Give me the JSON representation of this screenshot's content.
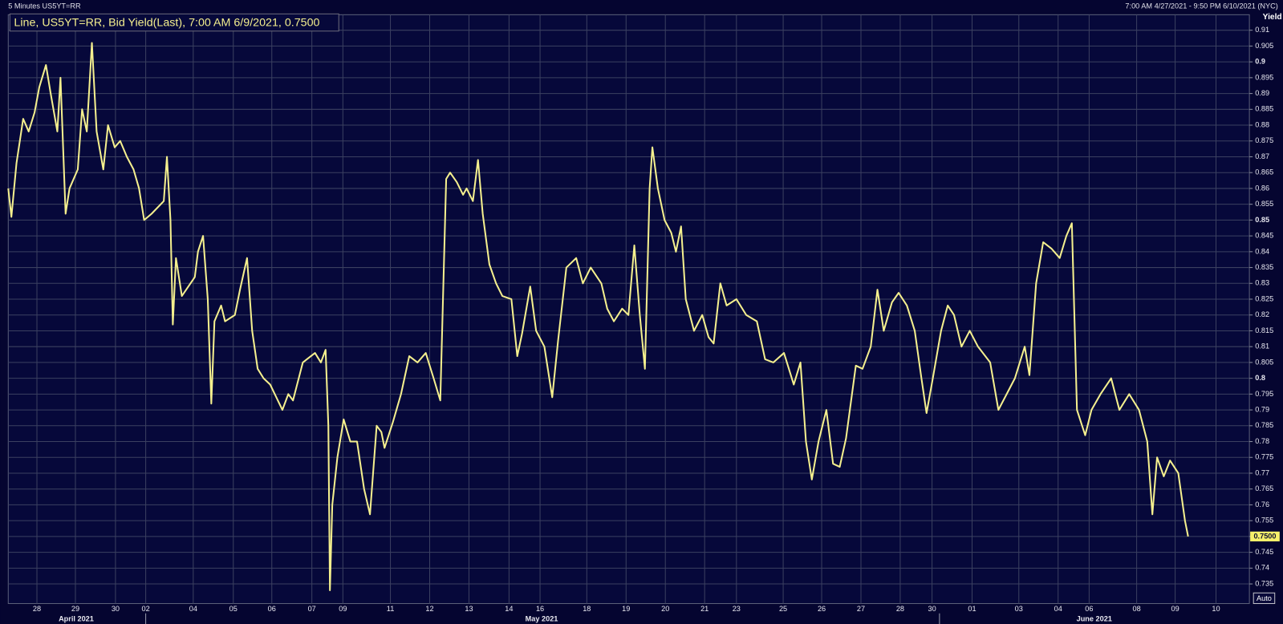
{
  "chart_data": {
    "type": "line",
    "header_left": "5 Minutes US5YT=RR",
    "header_right": "7:00 AM 4/27/2021 - 9:50 PM 6/10/2021 (NYC)",
    "legend": "Line, US5YT=RR, Bid Yield(Last), 7:00 AM 6/9/2021, 0.7500",
    "y_label": "Yield",
    "button": "Auto",
    "last_value_label": {
      "value": 0.75,
      "label": "0.7500"
    },
    "grid": true,
    "x": [
      0,
      0.08,
      0.21,
      0.38,
      0.52,
      0.67,
      0.79,
      0.96,
      1.08,
      1.25,
      1.33,
      1.46,
      1.56,
      1.77,
      1.88,
      2.0,
      2.13,
      2.25,
      2.42,
      2.54,
      2.71,
      2.85,
      3.02,
      3.19,
      3.33,
      3.46,
      3.65,
      3.96,
      4.04,
      4.13,
      4.19,
      4.27,
      4.42,
      4.75,
      4.83,
      4.96,
      5.08,
      5.17,
      5.25,
      5.42,
      5.52,
      5.77,
      5.9,
      6.08,
      6.21,
      6.35,
      6.5,
      6.67,
      6.98,
      7.13,
      7.25,
      7.5,
      7.81,
      7.96,
      8.08,
      8.15,
      8.19,
      8.25,
      8.38,
      8.54,
      8.71,
      8.88,
      9.06,
      9.21,
      9.38,
      9.5,
      9.58,
      9.79,
      10.0,
      10.21,
      10.42,
      10.63,
      10.83,
      11.0,
      11.15,
      11.25,
      11.42,
      11.58,
      11.67,
      11.83,
      11.96,
      12.08,
      12.25,
      12.42,
      12.58,
      12.81,
      12.96,
      13.08,
      13.29,
      13.44,
      13.65,
      13.85,
      14.0,
      14.21,
      14.46,
      14.63,
      14.83,
      15.1,
      15.25,
      15.42,
      15.63,
      15.79,
      15.94,
      16.08,
      16.21,
      16.33,
      16.4,
      16.54,
      16.71,
      16.88,
      17.0,
      17.13,
      17.25,
      17.46,
      17.67,
      17.83,
      17.96,
      18.13,
      18.29,
      18.54,
      18.79,
      19.06,
      19.27,
      19.48,
      19.75,
      20.0,
      20.17,
      20.31,
      20.46,
      20.63,
      20.83,
      21.0,
      21.17,
      21.33,
      21.58,
      21.75,
      21.96,
      22.13,
      22.29,
      22.5,
      22.67,
      22.88,
      23.08,
      23.25,
      23.38,
      23.54,
      23.75,
      23.92,
      24.08,
      24.27,
      24.48,
      24.69,
      25.0,
      25.21,
      25.42,
      25.63,
      25.88,
      26.0,
      26.17,
      26.35,
      26.56,
      26.77,
      26.94,
      27.08,
      27.21,
      27.42,
      27.58,
      27.81,
      28.08,
      28.29,
      28.54,
      28.79,
      29.0,
      29.13,
      29.25,
      29.42,
      29.58,
      29.79,
      29.96,
      30.04
    ],
    "series": [
      {
        "color": "#f4ef8e",
        "values": [
          0.86,
          0.851,
          0.868,
          0.882,
          0.878,
          0.884,
          0.892,
          0.899,
          0.89,
          0.878,
          0.895,
          0.852,
          0.86,
          0.866,
          0.885,
          0.878,
          0.906,
          0.878,
          0.866,
          0.88,
          0.873,
          0.875,
          0.87,
          0.866,
          0.86,
          0.85,
          0.852,
          0.856,
          0.87,
          0.85,
          0.817,
          0.838,
          0.826,
          0.832,
          0.84,
          0.845,
          0.825,
          0.792,
          0.818,
          0.823,
          0.818,
          0.82,
          0.828,
          0.838,
          0.815,
          0.803,
          0.8,
          0.798,
          0.79,
          0.795,
          0.793,
          0.805,
          0.808,
          0.805,
          0.809,
          0.785,
          0.733,
          0.76,
          0.775,
          0.787,
          0.78,
          0.78,
          0.765,
          0.757,
          0.785,
          0.783,
          0.778,
          0.786,
          0.795,
          0.807,
          0.805,
          0.808,
          0.8,
          0.793,
          0.863,
          0.865,
          0.862,
          0.858,
          0.86,
          0.856,
          0.869,
          0.852,
          0.836,
          0.83,
          0.826,
          0.825,
          0.807,
          0.814,
          0.829,
          0.815,
          0.81,
          0.794,
          0.812,
          0.835,
          0.838,
          0.83,
          0.835,
          0.83,
          0.822,
          0.818,
          0.822,
          0.82,
          0.842,
          0.82,
          0.803,
          0.86,
          0.873,
          0.86,
          0.85,
          0.846,
          0.84,
          0.848,
          0.825,
          0.815,
          0.82,
          0.813,
          0.811,
          0.83,
          0.823,
          0.825,
          0.82,
          0.818,
          0.806,
          0.805,
          0.808,
          0.798,
          0.805,
          0.78,
          0.768,
          0.78,
          0.79,
          0.773,
          0.772,
          0.781,
          0.804,
          0.803,
          0.81,
          0.828,
          0.815,
          0.824,
          0.827,
          0.823,
          0.815,
          0.8,
          0.789,
          0.8,
          0.815,
          0.823,
          0.82,
          0.81,
          0.815,
          0.81,
          0.805,
          0.79,
          0.795,
          0.8,
          0.81,
          0.801,
          0.83,
          0.843,
          0.841,
          0.838,
          0.845,
          0.849,
          0.79,
          0.782,
          0.79,
          0.795,
          0.8,
          0.79,
          0.795,
          0.79,
          0.78,
          0.757,
          0.775,
          0.769,
          0.774,
          0.77,
          0.755,
          0.75
        ]
      }
    ],
    "xlim": [
      0,
      31.6
    ],
    "xticks": [
      {
        "value": 0.73,
        "label": "28"
      },
      {
        "value": 1.71,
        "label": "29"
      },
      {
        "value": 2.73,
        "label": "30"
      },
      {
        "value": 3.5,
        "label": "02"
      },
      {
        "value": 4.71,
        "label": "04"
      },
      {
        "value": 5.73,
        "label": "05"
      },
      {
        "value": 6.71,
        "label": "06"
      },
      {
        "value": 7.73,
        "label": "07"
      },
      {
        "value": 8.52,
        "label": "09"
      },
      {
        "value": 9.73,
        "label": "11"
      },
      {
        "value": 10.73,
        "label": "12"
      },
      {
        "value": 11.73,
        "label": "13"
      },
      {
        "value": 12.75,
        "label": "14"
      },
      {
        "value": 13.54,
        "label": "16"
      },
      {
        "value": 14.73,
        "label": "18"
      },
      {
        "value": 15.73,
        "label": "19"
      },
      {
        "value": 16.73,
        "label": "20"
      },
      {
        "value": 17.73,
        "label": "21"
      },
      {
        "value": 18.54,
        "label": "23"
      },
      {
        "value": 19.73,
        "label": "25"
      },
      {
        "value": 20.71,
        "label": "26"
      },
      {
        "value": 21.71,
        "label": "27"
      },
      {
        "value": 22.71,
        "label": "28"
      },
      {
        "value": 23.52,
        "label": "30"
      },
      {
        "value": 24.54,
        "label": "01"
      },
      {
        "value": 25.73,
        "label": "03"
      },
      {
        "value": 26.73,
        "label": "04"
      },
      {
        "value": 27.52,
        "label": "06"
      },
      {
        "value": 28.73,
        "label": "08"
      },
      {
        "value": 29.71,
        "label": "09"
      },
      {
        "value": 30.75,
        "label": "10"
      }
    ],
    "month_labels": [
      {
        "value": 1.73,
        "label": "April 2021"
      },
      {
        "value": 13.58,
        "label": "May 2021"
      },
      {
        "value": 27.65,
        "label": "June 2021"
      }
    ],
    "month_starts": [
      3.5,
      23.71
    ],
    "ylim": [
      0.7288,
      0.9149
    ],
    "yticks": [
      0.735,
      0.74,
      0.745,
      0.75,
      0.755,
      0.76,
      0.765,
      0.77,
      0.775,
      0.78,
      0.785,
      0.79,
      0.795,
      0.8,
      0.805,
      0.81,
      0.815,
      0.82,
      0.825,
      0.83,
      0.835,
      0.84,
      0.845,
      0.85,
      0.855,
      0.86,
      0.865,
      0.87,
      0.875,
      0.88,
      0.885,
      0.89,
      0.895,
      0.9,
      0.905,
      0.91
    ]
  }
}
